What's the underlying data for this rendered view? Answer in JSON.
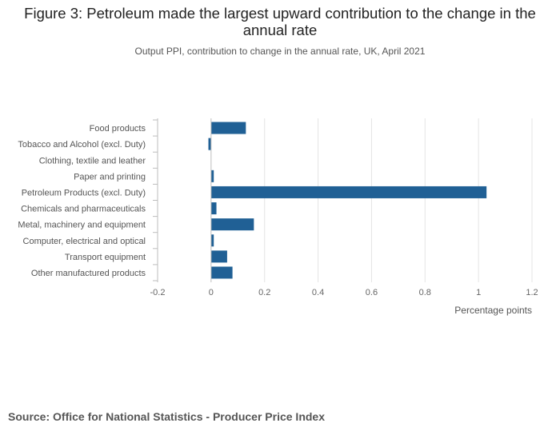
{
  "header": {
    "title": "Figure 3: Petroleum made the largest upward contribution to the change in the annual rate",
    "subtitle": "Output PPI, contribution to change in the annual rate, UK, April 2021"
  },
  "footer": {
    "source": "Source: Office for National Statistics - Producer Price Index"
  },
  "colors": {
    "bar": "#206095",
    "grid": "#e4e4e4",
    "axis": "#bdbdbd",
    "text": "#555555"
  },
  "chart_data": {
    "type": "bar",
    "orientation": "horizontal",
    "title": "Figure 3: Petroleum made the largest upward contribution to the change in the annual rate",
    "subtitle": "Output PPI, contribution to change in the annual rate, UK, April 2021",
    "categories": [
      "Food products",
      "Tobacco and Alcohol (excl. Duty)",
      "Clothing, textile and leather",
      "Paper and printing",
      "Petroleum Products (excl. Duty)",
      "Chemicals and pharmaceuticals",
      "Metal, machinery and equipment",
      "Computer, electrical and optical",
      "Transport equipment",
      "Other manufactured products"
    ],
    "values": [
      0.13,
      -0.01,
      0.0,
      0.01,
      1.03,
      0.02,
      0.16,
      0.01,
      0.06,
      0.08
    ],
    "xlabel": "Percentage points",
    "ylabel": "",
    "xlim": [
      -0.2,
      1.2
    ],
    "ticks": [
      -0.2,
      0,
      0.2,
      0.4,
      0.6,
      0.8,
      1,
      1.2
    ],
    "tick_labels": [
      "-0.2",
      "0",
      "0.2",
      "0.4",
      "0.6",
      "0.8",
      "1",
      "1.2"
    ],
    "grid": true,
    "legend": "none"
  }
}
